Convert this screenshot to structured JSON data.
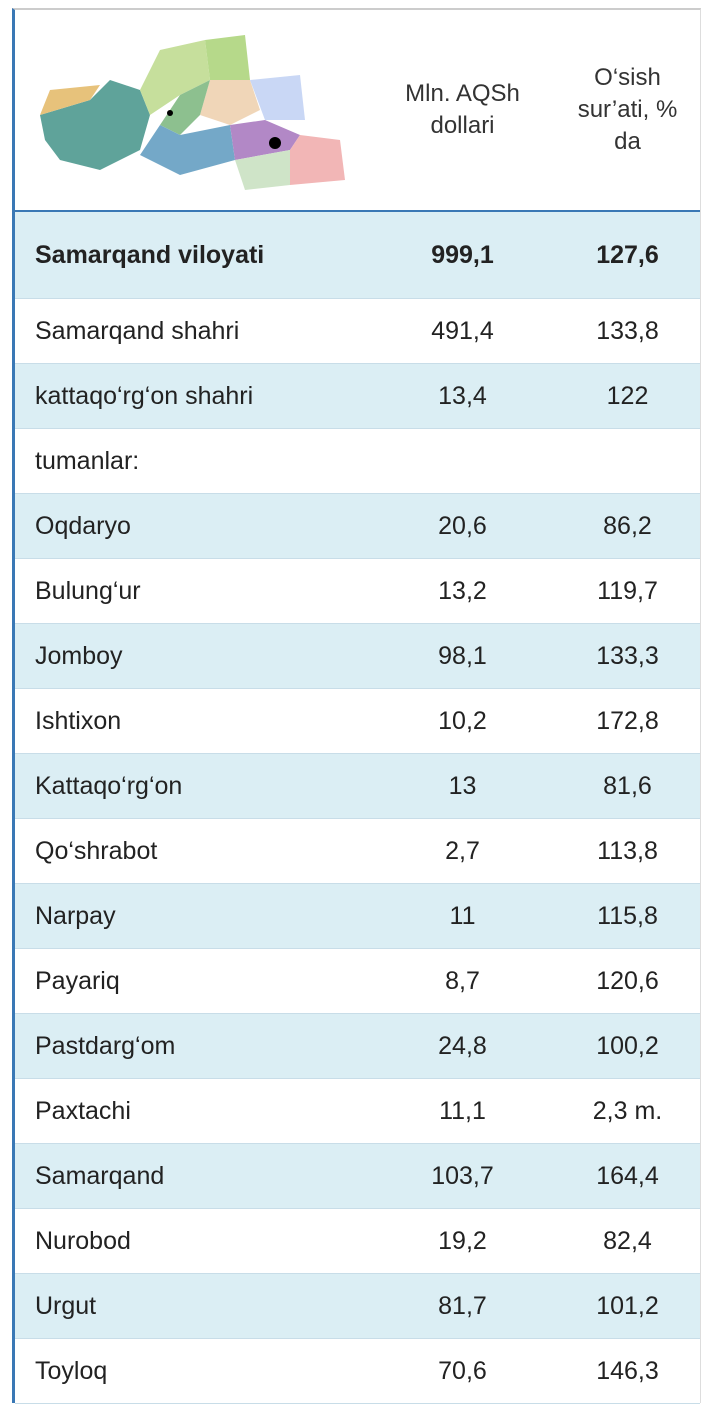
{
  "table": {
    "header": {
      "col1": [
        "Mln. AQSh",
        "dollari"
      ],
      "col2": [
        "O‘sish",
        "sur’ati, %",
        "da"
      ]
    },
    "rows": [
      [
        "Samarqand  viloyati",
        "999,1",
        "127,6"
      ],
      [
        "Samarqand  shahri",
        "491,4",
        "133,8"
      ],
      [
        "kattaqo‘rg‘on  shahri",
        "13,4",
        "122"
      ],
      [
        "tumanlar:"
      ],
      [
        "Oqdaryo",
        "20,6",
        "86,2"
      ],
      [
        "Bulung‘ur",
        "13,2",
        "119,7"
      ],
      [
        "Jomboy",
        "98,1",
        "133,3"
      ],
      [
        "Ishtixon",
        "10,2",
        "172,8"
      ],
      [
        "Kattaqo‘rg‘on",
        "13",
        "81,6"
      ],
      [
        "Qo‘shrabot",
        "2,7",
        "113,8"
      ],
      [
        "Narpay",
        "11",
        "115,8"
      ],
      [
        "Payariq",
        "8,7",
        "120,6"
      ],
      [
        "Pastdarg‘om",
        "24,8",
        "100,2"
      ],
      [
        "Paxtachi",
        "11,1",
        "2,3 m."
      ],
      [
        "Samarqand",
        "103,7",
        "164,4"
      ],
      [
        "Nurobod",
        "19,2",
        "82,4"
      ],
      [
        "Urgut",
        "81,7",
        "101,2"
      ],
      [
        "Toyloq",
        "70,6",
        "146,3"
      ]
    ]
  }
}
